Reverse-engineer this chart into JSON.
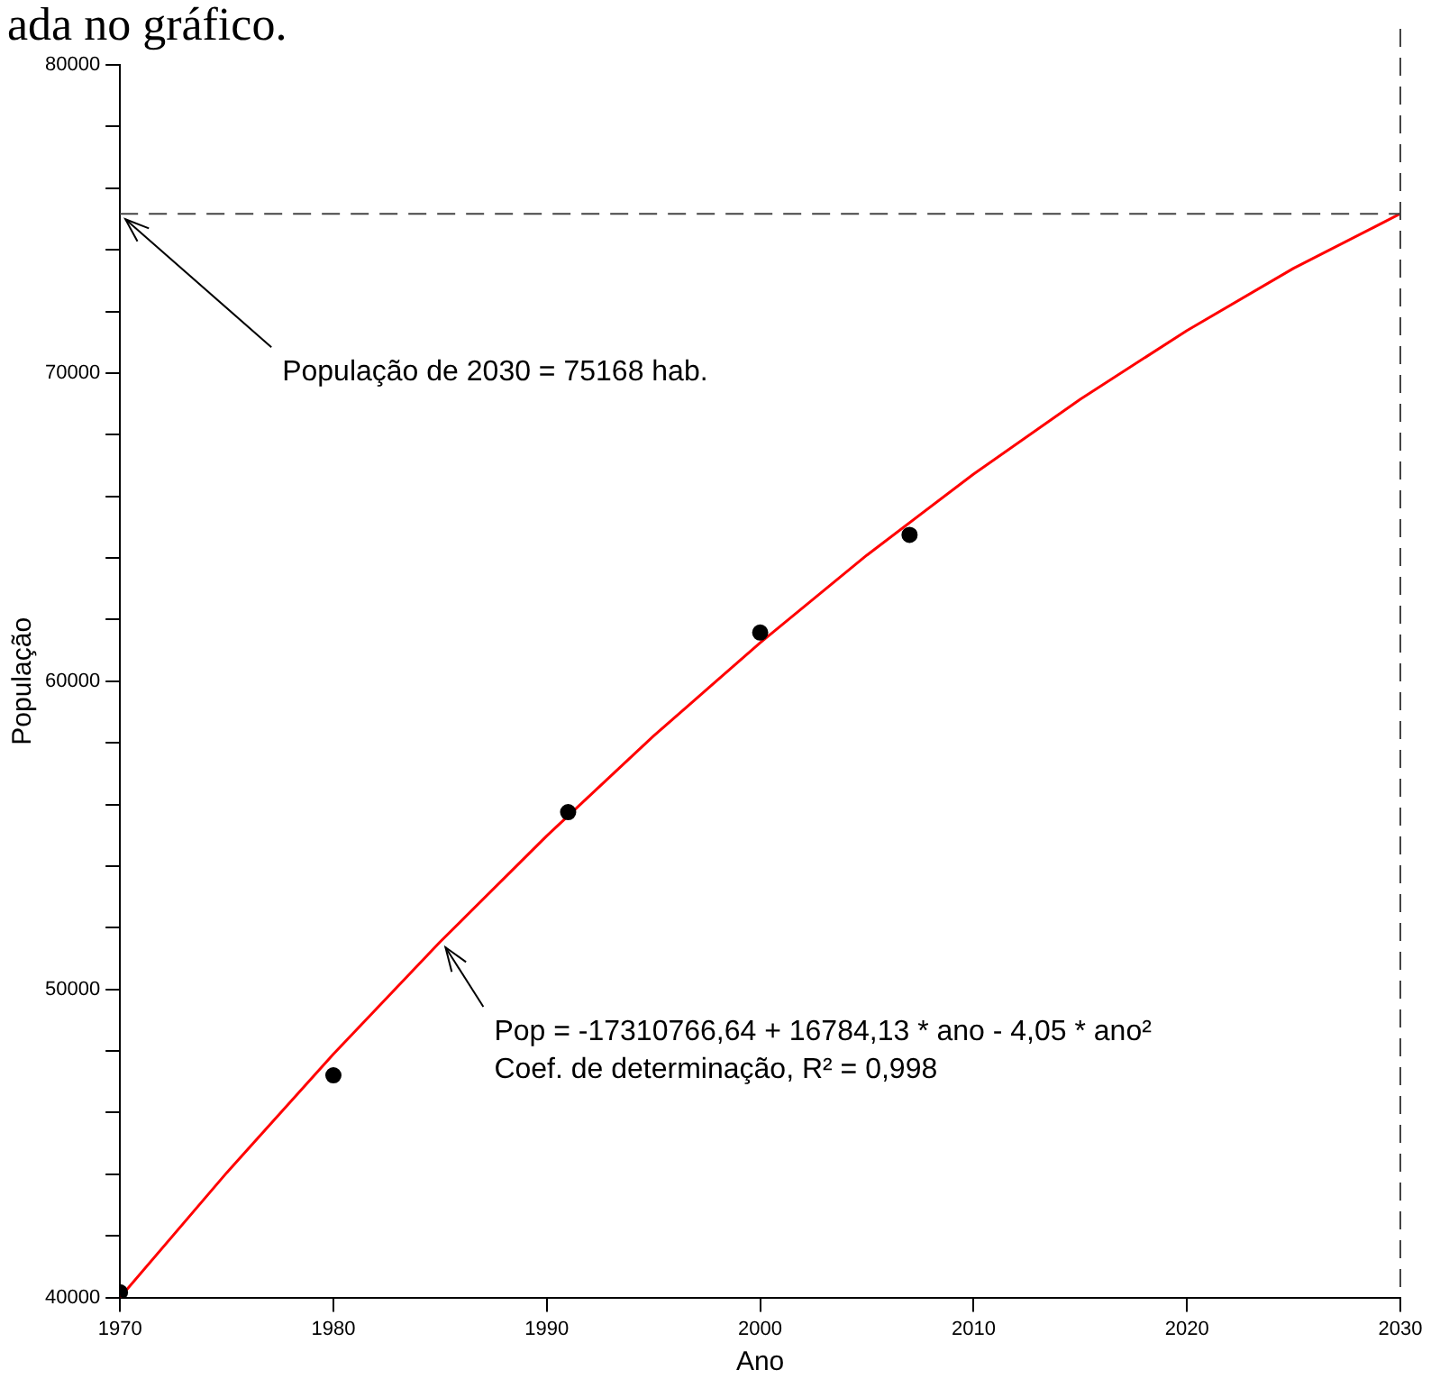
{
  "chart_data": {
    "type": "scatter",
    "xlabel": "Ano",
    "ylabel": "População",
    "annotations": [
      "ada no gráfico.",
      {
        "text": "População de 2030 = 75168 hab.",
        "x": 1970,
        "y": 75168
      },
      {
        "text": "Pop = -17310766,64 + 16784,13 * ano - 4,05 * ano²\nCoef. de determinação, R² = 0,998",
        "x": 1985,
        "y": 51540
      }
    ],
    "series": [
      {
        "color": "#000000",
        "x": [
          1970,
          1980,
          1991,
          2000,
          2007
        ],
        "values": [
          40170,
          47210,
          55750,
          61580,
          64750
        ]
      },
      {
        "type": "line",
        "marker": "none",
        "color": "#ff0000",
        "x": [
          1970,
          1975,
          1980,
          1985,
          1990,
          1995,
          2000,
          2005,
          2010,
          2015,
          2020,
          2025,
          2030
        ],
        "values": [
          40000,
          44050,
          47900,
          51540,
          54980,
          58220,
          61250,
          64090,
          66720,
          69150,
          71380,
          73400,
          75170
        ]
      }
    ],
    "xlim": [
      1970,
      2030
    ],
    "xticks": [
      1970,
      1980,
      1990,
      2000,
      2010,
      2020,
      2030
    ],
    "ylim": [
      40000,
      80000
    ],
    "yticks": [
      40000,
      {
        "value": 42000,
        "label": null
      },
      {
        "value": 44000,
        "label": null
      },
      {
        "value": 46000,
        "label": null
      },
      {
        "value": 48000,
        "label": null
      },
      50000,
      {
        "value": 52000,
        "label": null
      },
      {
        "value": 54000,
        "label": null
      },
      {
        "value": 56000,
        "label": null
      },
      {
        "value": 58000,
        "label": null
      },
      60000,
      {
        "value": 62000,
        "label": null
      },
      {
        "value": 64000,
        "label": null
      },
      {
        "value": 66000,
        "label": null
      },
      {
        "value": 68000,
        "label": null
      },
      70000,
      {
        "value": 72000,
        "label": null
      },
      {
        "value": 74000,
        "label": null
      },
      {
        "value": 76000,
        "label": null
      },
      {
        "value": 78000,
        "label": null
      },
      80000
    ],
    "ref_lines": [
      {
        "axis": "y",
        "value": 75168,
        "color": "#444444",
        "line_style": "dashed"
      },
      {
        "axis": "x",
        "value": 2030,
        "color": "#444444",
        "line_style": "dashed"
      }
    ],
    "grid": false,
    "legend": false,
    "marker": "circle"
  }
}
